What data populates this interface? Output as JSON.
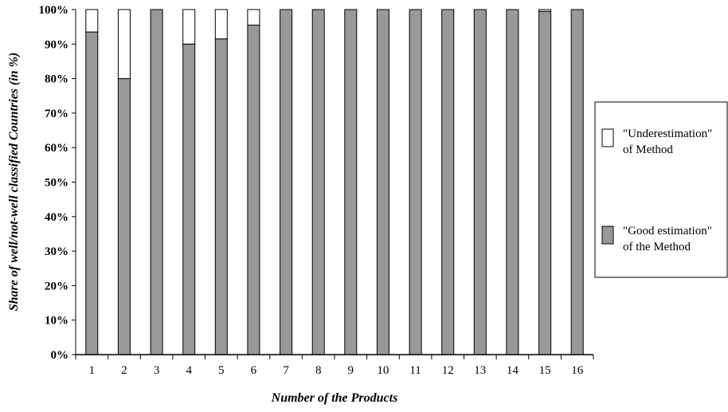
{
  "chart_data": {
    "type": "bar",
    "stacked": true,
    "categories": [
      "1",
      "2",
      "3",
      "4",
      "5",
      "6",
      "7",
      "8",
      "9",
      "10",
      "11",
      "12",
      "13",
      "14",
      "15",
      "16"
    ],
    "series": [
      {
        "name_lines": [
          "\"Good estimation\"",
          "of the Method"
        ],
        "color": "#999999",
        "values": [
          93.5,
          80,
          100,
          90,
          91.5,
          95.5,
          100,
          100,
          100,
          100,
          100,
          100,
          100,
          100,
          99.5,
          100
        ]
      },
      {
        "name_lines": [
          "\"Underestimation\"",
          "of Method"
        ],
        "color": "#ffffff",
        "values": [
          6.5,
          20,
          0,
          10,
          8.5,
          4.5,
          0,
          0,
          0,
          0,
          0,
          0,
          0,
          0,
          0.5,
          0
        ]
      }
    ],
    "xlabel": "Number of the Products",
    "ylabel": "Share of well/not-well classified Countries (in %)",
    "ylim": [
      0,
      100
    ],
    "yticks": [
      "0%",
      "10%",
      "20%",
      "30%",
      "40%",
      "50%",
      "60%",
      "70%",
      "80%",
      "90%",
      "100%"
    ],
    "grid": false,
    "legend_position": "right"
  }
}
